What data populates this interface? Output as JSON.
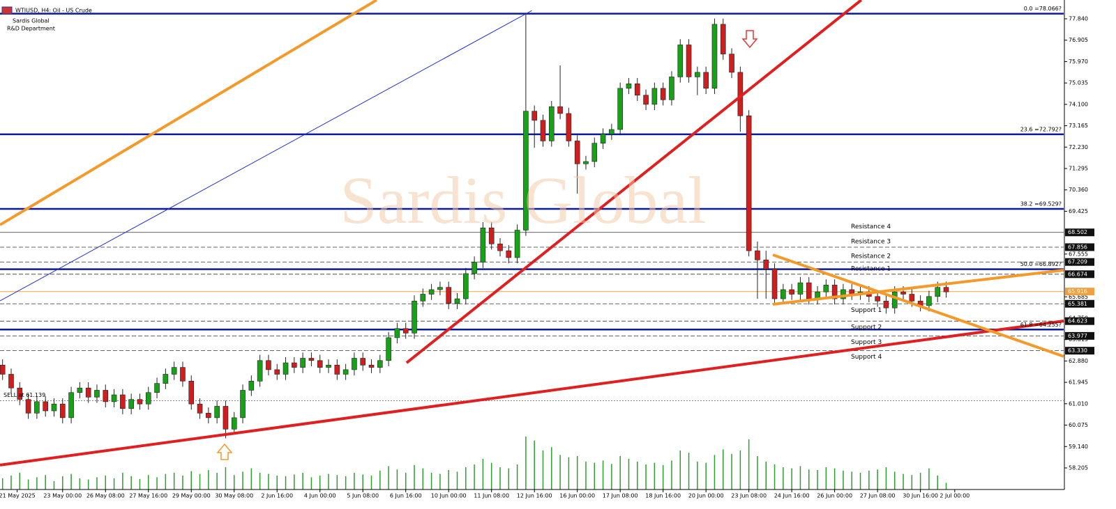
{
  "chart_data": {
    "type": "candlestick",
    "title": "WTIUSD, H4: Oil - US Crude",
    "annotations": [
      "Sardis Global",
      "R&D Department"
    ],
    "watermark": "Sardis Global",
    "order": {
      "label": "SELL at 61.139",
      "value": 61.139
    },
    "up_color": "#18a018",
    "down_color": "#cc1f1f",
    "volume_color": "#2ca02c",
    "xlim": [
      -0.3,
      123.7
    ],
    "xticks": [
      {
        "value": 1.7,
        "label": "21 May 2025"
      },
      {
        "value": 7,
        "label": "23 May 00:00"
      },
      {
        "value": 12,
        "label": "26 May 08:00"
      },
      {
        "value": 17,
        "label": "27 May 16:00"
      },
      {
        "value": 22,
        "label": "29 May 00:00"
      },
      {
        "value": 27,
        "label": "30 May 08:00"
      },
      {
        "value": 32,
        "label": "2 Jun 16:00"
      },
      {
        "value": 37,
        "label": "4 Jun 00:00"
      },
      {
        "value": 42,
        "label": "5 Jun 08:00"
      },
      {
        "value": 47,
        "label": "6 Jun 16:00"
      },
      {
        "value": 52,
        "label": "10 Jun 00:00"
      },
      {
        "value": 57,
        "label": "11 Jun 08:00"
      },
      {
        "value": 62,
        "label": "12 Jun 16:00"
      },
      {
        "value": 67,
        "label": "16 Jun 00:00"
      },
      {
        "value": 72,
        "label": "17 Jun 08:00"
      },
      {
        "value": 77,
        "label": "18 Jun 16:00"
      },
      {
        "value": 82,
        "label": "20 Jun 00:00"
      },
      {
        "value": 87,
        "label": "23 Jun 08:00"
      },
      {
        "value": 92,
        "label": "24 Jun 16:00"
      },
      {
        "value": 97,
        "label": "26 Jun 00:00"
      },
      {
        "value": 102,
        "label": "27 Jun 08:00"
      },
      {
        "value": 107,
        "label": "30 Jun 16:00"
      },
      {
        "value": 111,
        "label": "2 Jul 00:00"
      }
    ],
    "ylim": [
      57.261,
      78.662
    ],
    "yticks": [
      {
        "value": 77.84,
        "label": "77.840"
      },
      {
        "value": 76.905,
        "label": "76.905"
      },
      {
        "value": 75.97,
        "label": "75.970"
      },
      {
        "value": 75.035,
        "label": "75.035"
      },
      {
        "value": 74.1,
        "label": "74.100"
      },
      {
        "value": 73.165,
        "label": "73.165"
      },
      {
        "value": 72.23,
        "label": "72.230"
      },
      {
        "value": 71.295,
        "label": "71.295"
      },
      {
        "value": 70.36,
        "label": "70.360"
      },
      {
        "value": 69.425,
        "label": "69.425"
      },
      {
        "value": 67.555,
        "label": "67.555"
      },
      {
        "value": 65.685,
        "label": "65.685"
      },
      {
        "value": 64.75,
        "label": "64.750"
      },
      {
        "value": 63.815,
        "label": "63.815"
      },
      {
        "value": 62.88,
        "label": "62.880"
      },
      {
        "value": 61.945,
        "label": "61.945"
      },
      {
        "value": 61.01,
        "label": "61.010"
      },
      {
        "value": 60.075,
        "label": "60.075"
      },
      {
        "value": 59.14,
        "label": "59.140"
      },
      {
        "value": 58.205,
        "label": "58.205"
      }
    ],
    "open": [
      62.7,
      62.3,
      61.7,
      61.2,
      60.6,
      61.1,
      60.7,
      61.0,
      60.4,
      61.5,
      61.7,
      61.3,
      61.6,
      61.1,
      61.4,
      60.8,
      61.2,
      61.0,
      61.5,
      61.9,
      62.3,
      62.6,
      62.0,
      61.0,
      60.6,
      60.4,
      60.9,
      59.9,
      60.4,
      61.6,
      62.0,
      62.9,
      62.5,
      62.3,
      62.8,
      62.6,
      63.0,
      62.9,
      62.6,
      62.7,
      62.3,
      62.5,
      63.0,
      62.7,
      62.6,
      62.9,
      63.9,
      64.3,
      64.1,
      65.5,
      65.8,
      66.0,
      66.1,
      65.4,
      65.6,
      66.7,
      67.2,
      68.7,
      68.0,
      67.7,
      67.4,
      68.6,
      73.8,
      73.4,
      72.5,
      74.0,
      73.7,
      72.5,
      71.5,
      71.6,
      72.4,
      72.8,
      73.0,
      74.8,
      75.0,
      74.5,
      74.1,
      74.8,
      74.3,
      75.3,
      76.7,
      75.3,
      75.5,
      74.8,
      77.6,
      76.3,
      75.5,
      73.6,
      67.7,
      67.3,
      66.9,
      65.6,
      66.0,
      65.8,
      66.3,
      65.6,
      65.9,
      66.2,
      65.6,
      66.0,
      65.8,
      65.9,
      65.7,
      65.5,
      65.2,
      65.9,
      65.8,
      65.5,
      65.3,
      65.7,
      66.1
    ],
    "high": [
      62.95,
      62.55,
      61.95,
      61.45,
      61.35,
      61.35,
      61.25,
      61.25,
      61.75,
      61.95,
      61.95,
      61.85,
      61.85,
      61.65,
      61.65,
      61.45,
      61.45,
      61.75,
      62.15,
      62.55,
      62.85,
      62.85,
      62.25,
      61.25,
      60.85,
      61.15,
      61.15,
      60.65,
      61.85,
      62.25,
      63.15,
      63.15,
      62.75,
      63.05,
      63.05,
      63.25,
      63.25,
      63.15,
      62.95,
      62.95,
      62.75,
      63.25,
      63.25,
      62.95,
      63.15,
      64.15,
      64.55,
      64.55,
      65.75,
      66.05,
      66.25,
      66.35,
      66.35,
      65.85,
      66.95,
      67.45,
      68.95,
      68.95,
      68.25,
      67.95,
      68.85,
      78.07,
      74.05,
      73.65,
      74.25,
      75.8,
      73.95,
      72.75,
      71.85,
      72.65,
      73.05,
      73.25,
      75.05,
      75.25,
      75.25,
      74.75,
      75.05,
      75.05,
      75.55,
      76.95,
      76.95,
      75.75,
      75.75,
      77.85,
      77.85,
      76.55,
      75.75,
      73.85,
      68.1,
      67.7,
      67.15,
      66.25,
      66.25,
      66.55,
      66.55,
      66.15,
      66.45,
      66.45,
      66.25,
      66.25,
      66.15,
      66.15,
      65.95,
      65.75,
      66.15,
      66.15,
      66.05,
      65.75,
      65.95,
      66.35,
      66.35
    ],
    "low": [
      62.05,
      61.45,
      60.95,
      60.35,
      60.35,
      60.45,
      60.45,
      60.15,
      60.15,
      61.25,
      61.05,
      61.05,
      60.85,
      60.85,
      60.55,
      60.55,
      60.75,
      60.75,
      61.25,
      61.65,
      62.05,
      61.75,
      60.75,
      60.35,
      60.15,
      60.15,
      59.5,
      59.65,
      60.15,
      61.35,
      61.75,
      62.25,
      62.05,
      62.05,
      62.35,
      62.35,
      62.65,
      62.35,
      62.35,
      62.05,
      62.05,
      62.25,
      62.45,
      62.35,
      62.35,
      62.65,
      63.65,
      63.85,
      63.85,
      65.25,
      65.55,
      65.75,
      65.15,
      65.15,
      65.35,
      66.45,
      66.95,
      67.75,
      67.45,
      67.15,
      67.15,
      68.35,
      72.2,
      72.25,
      72.25,
      73.45,
      72.25,
      70.2,
      71.25,
      71.35,
      72.15,
      72.55,
      72.75,
      74.55,
      74.25,
      73.85,
      73.85,
      74.05,
      74.05,
      75.05,
      75.05,
      74.5,
      74.55,
      74.55,
      76.05,
      75.25,
      72.9,
      67.45,
      65.6,
      65.6,
      65.35,
      65.35,
      65.55,
      65.55,
      65.35,
      65.35,
      65.65,
      65.35,
      65.35,
      65.55,
      65.55,
      65.45,
      65.25,
      64.95,
      64.95,
      65.55,
      65.25,
      65.05,
      65.05,
      65.45,
      65.65
    ],
    "close": [
      62.3,
      61.7,
      61.2,
      60.6,
      61.1,
      60.7,
      61.0,
      60.4,
      61.5,
      61.7,
      61.3,
      61.6,
      61.1,
      61.4,
      60.8,
      61.2,
      61.0,
      61.5,
      61.9,
      62.3,
      62.6,
      62.0,
      61.0,
      60.6,
      60.4,
      60.9,
      59.9,
      60.4,
      61.6,
      62.0,
      62.9,
      62.5,
      62.3,
      62.8,
      62.6,
      63.0,
      62.9,
      62.6,
      62.7,
      62.3,
      62.5,
      63.0,
      62.7,
      62.6,
      62.9,
      63.9,
      64.3,
      64.1,
      65.5,
      65.8,
      66.0,
      66.1,
      65.4,
      65.6,
      66.7,
      67.2,
      68.7,
      68.0,
      67.7,
      67.4,
      68.6,
      73.8,
      73.4,
      72.5,
      74.0,
      73.7,
      72.5,
      71.5,
      71.6,
      72.4,
      72.8,
      73.0,
      74.8,
      75.0,
      74.5,
      74.1,
      74.8,
      74.3,
      75.3,
      76.7,
      75.3,
      75.5,
      74.8,
      77.6,
      76.3,
      75.5,
      73.6,
      67.7,
      67.3,
      66.9,
      65.6,
      66.0,
      65.8,
      66.3,
      65.6,
      65.9,
      66.2,
      65.6,
      66.0,
      65.8,
      65.9,
      65.7,
      65.5,
      65.2,
      65.9,
      65.8,
      65.5,
      65.3,
      65.7,
      66.1,
      65.9
    ],
    "vlim": [
      0,
      100
    ],
    "volume": [
      20,
      25,
      30,
      18,
      22,
      26,
      15,
      24,
      28,
      20,
      18,
      22,
      25,
      20,
      30,
      24,
      19,
      26,
      22,
      28,
      30,
      25,
      33,
      28,
      35,
      30,
      40,
      26,
      32,
      38,
      30,
      28,
      25,
      24,
      27,
      30,
      22,
      25,
      28,
      26,
      24,
      30,
      27,
      25,
      34,
      42,
      36,
      30,
      44,
      38,
      30,
      28,
      35,
      32,
      40,
      45,
      55,
      48,
      40,
      38,
      45,
      95,
      88,
      70,
      76,
      62,
      58,
      60,
      50,
      48,
      52,
      46,
      60,
      55,
      50,
      45,
      48,
      44,
      52,
      70,
      66,
      50,
      48,
      62,
      72,
      64,
      70,
      90,
      60,
      50,
      45,
      40,
      38,
      42,
      36,
      35,
      40,
      38,
      34,
      32,
      30,
      34,
      36,
      40,
      32,
      28,
      26,
      30,
      38,
      25,
      12
    ],
    "fib_color": "#0b1a9a",
    "fib_levels": [
      {
        "label": "0.0 =78.066?",
        "value": 78.066
      },
      {
        "label": "23.6 =72.792?",
        "value": 72.792
      },
      {
        "label": "38.2 =69.529?",
        "value": 69.529
      },
      {
        "label": "50.0 =66.892?",
        "value": 66.892
      },
      {
        "label": "61.8 =64.255?",
        "value": 64.255
      }
    ],
    "levels": [
      {
        "name": "Resistance 4",
        "value": 68.502,
        "label": "68.502"
      },
      {
        "name": "Resistance 3",
        "value": 67.856,
        "label": "67.856"
      },
      {
        "name": "Resistance 2",
        "value": 67.209,
        "label": "67.209"
      },
      {
        "name": "Resistance 1",
        "value": 66.674,
        "label": "66.674"
      },
      {
        "name": "Support 1",
        "value": 65.381,
        "label": "65.381"
      },
      {
        "name": "Support 2",
        "value": 64.623,
        "label": "64.623"
      },
      {
        "name": "Support 3",
        "value": 63.977,
        "label": "63.977"
      },
      {
        "name": "Support 4",
        "value": 63.33,
        "label": "63.330"
      }
    ],
    "last_price": {
      "value": 65.916,
      "label": "65.916",
      "color": "#f0a040"
    },
    "trend_lines": [
      {
        "color": "#f39a2a",
        "width": 4,
        "points": [
          [
            -0.3,
            68.83
          ],
          [
            43.6,
            78.66
          ]
        ]
      },
      {
        "color": "#e02020",
        "width": 4,
        "points": [
          [
            -0.3,
            58.33
          ],
          [
            123.7,
            64.63
          ]
        ]
      },
      {
        "color": "#e02020",
        "width": 4,
        "points": [
          [
            47.1,
            62.8
          ],
          [
            100.1,
            78.66
          ]
        ]
      },
      {
        "color": "#2233cc",
        "width": 1,
        "points": [
          [
            -0.3,
            65.51
          ],
          [
            61.7,
            78.2
          ]
        ]
      },
      {
        "color": "#f39a2a",
        "width": 4,
        "points": [
          [
            89.8,
            67.52
          ],
          [
            123.7,
            63.08
          ]
        ]
      },
      {
        "color": "#f39a2a",
        "width": 4,
        "points": [
          [
            89.8,
            65.36
          ],
          [
            123.7,
            66.85
          ]
        ]
      }
    ]
  }
}
